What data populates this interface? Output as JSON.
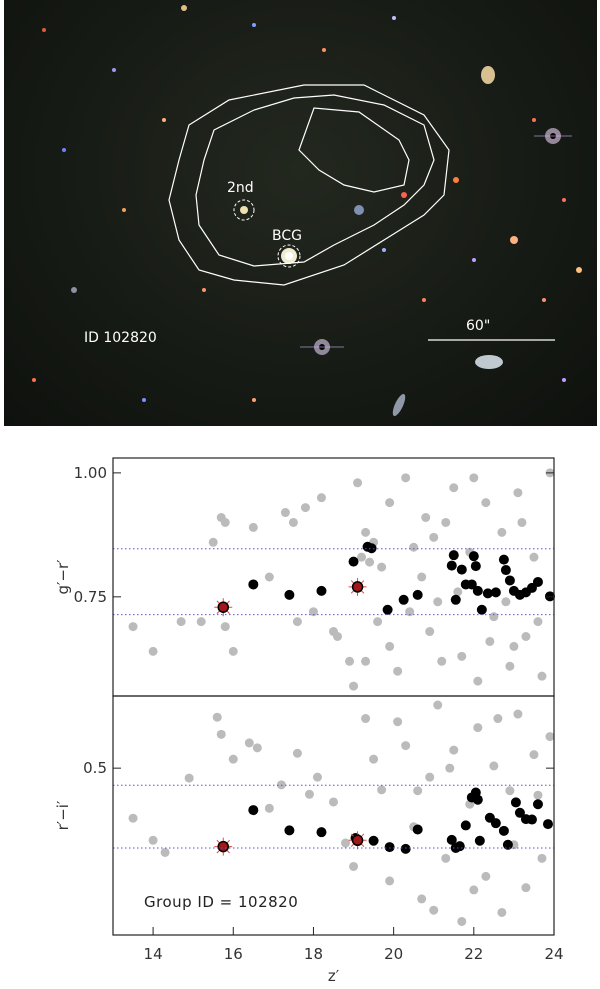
{
  "image_panel": {
    "id_label": "ID 102820",
    "scale_label": "60\"",
    "bcg_label": "BCG",
    "second_label": "2nd"
  },
  "chart_data": [
    {
      "type": "scatter",
      "xlabel": "z′",
      "ylabel": "g′−r′",
      "xlim": [
        13,
        24
      ],
      "ylim": [
        0.55,
        1.03
      ],
      "yticks": [
        {
          "value": 1.0,
          "label": "1.00"
        },
        {
          "value": 0.75,
          "label": "0.75"
        }
      ],
      "xticks": [
        14,
        16,
        18,
        20,
        22,
        24
      ],
      "reference_lines": [
        0.847,
        0.714
      ],
      "series": [
        {
          "role": "field",
          "color": "#bbbbbb",
          "points": [
            [
              13.5,
              0.69
            ],
            [
              14.0,
              0.64
            ],
            [
              14.7,
              0.7
            ],
            [
              15.2,
              0.7
            ],
            [
              15.5,
              0.86
            ],
            [
              15.8,
              0.69
            ],
            [
              16.0,
              0.64
            ],
            [
              15.7,
              0.91
            ],
            [
              15.8,
              0.9
            ],
            [
              16.5,
              0.89
            ],
            [
              17.3,
              0.92
            ],
            [
              17.5,
              0.9
            ],
            [
              17.8,
              0.93
            ],
            [
              18.2,
              0.95
            ],
            [
              16.9,
              0.79
            ],
            [
              17.6,
              0.7
            ],
            [
              18.0,
              0.72
            ],
            [
              18.5,
              0.68
            ],
            [
              18.6,
              0.67
            ],
            [
              18.9,
              0.62
            ],
            [
              19.1,
              0.98
            ],
            [
              19.2,
              0.83
            ],
            [
              19.3,
              0.88
            ],
            [
              19.4,
              0.82
            ],
            [
              19.5,
              0.86
            ],
            [
              19.7,
              0.81
            ],
            [
              19.9,
              0.94
            ],
            [
              19.0,
              0.57
            ],
            [
              19.3,
              0.62
            ],
            [
              19.6,
              0.7
            ],
            [
              19.9,
              0.65
            ],
            [
              20.1,
              0.6
            ],
            [
              20.3,
              0.99
            ],
            [
              20.5,
              0.85
            ],
            [
              20.7,
              0.79
            ],
            [
              20.9,
              0.68
            ],
            [
              21.1,
              0.74
            ],
            [
              21.3,
              0.9
            ],
            [
              21.5,
              0.97
            ],
            [
              21.7,
              0.63
            ],
            [
              21.9,
              0.84
            ],
            [
              22.1,
              0.58
            ],
            [
              22.3,
              0.94
            ],
            [
              22.5,
              0.71
            ],
            [
              22.7,
              0.88
            ],
            [
              22.9,
              0.61
            ],
            [
              23.1,
              0.96
            ],
            [
              23.3,
              0.67
            ],
            [
              23.5,
              0.83
            ],
            [
              23.7,
              0.59
            ],
            [
              23.9,
              1.0
            ],
            [
              21.2,
              0.62
            ],
            [
              22.4,
              0.66
            ],
            [
              23.2,
              0.9
            ],
            [
              20.8,
              0.91
            ],
            [
              21.6,
              0.76
            ],
            [
              22.8,
              0.74
            ],
            [
              23.6,
              0.7
            ],
            [
              20.4,
              0.72
            ],
            [
              21.0,
              0.87
            ],
            [
              22.0,
              0.99
            ],
            [
              23.0,
              0.65
            ]
          ]
        },
        {
          "role": "members",
          "color": "#000000",
          "points": [
            [
              16.5,
              0.775
            ],
            [
              17.4,
              0.754
            ],
            [
              18.2,
              0.762
            ],
            [
              19.0,
              0.821
            ],
            [
              19.35,
              0.851
            ],
            [
              19.45,
              0.848
            ],
            [
              19.85,
              0.724
            ],
            [
              20.25,
              0.744
            ],
            [
              20.6,
              0.754
            ],
            [
              21.45,
              0.813
            ],
            [
              21.5,
              0.834
            ],
            [
              21.55,
              0.744
            ],
            [
              21.7,
              0.805
            ],
            [
              21.8,
              0.775
            ],
            [
              21.95,
              0.775
            ],
            [
              22.0,
              0.832
            ],
            [
              22.05,
              0.812
            ],
            [
              22.1,
              0.762
            ],
            [
              22.2,
              0.724
            ],
            [
              22.35,
              0.757
            ],
            [
              22.55,
              0.759
            ],
            [
              22.75,
              0.825
            ],
            [
              22.8,
              0.804
            ],
            [
              22.9,
              0.783
            ],
            [
              23.0,
              0.762
            ],
            [
              23.15,
              0.754
            ],
            [
              23.3,
              0.759
            ],
            [
              23.45,
              0.768
            ],
            [
              23.6,
              0.78
            ],
            [
              23.9,
              0.751
            ]
          ]
        },
        {
          "role": "bcg_and_2nd",
          "color": "#a01818",
          "points": [
            [
              15.75,
              0.729
            ],
            [
              19.1,
              0.77
            ]
          ]
        }
      ]
    },
    {
      "type": "scatter",
      "xlabel": "z′",
      "ylabel": "r′−i′",
      "xlim": [
        13,
        24
      ],
      "ylim": [
        0.13,
        0.66
      ],
      "yticks": [
        {
          "value": 0.5,
          "label": "0.5"
        }
      ],
      "xticks": [
        14,
        16,
        18,
        20,
        22,
        24
      ],
      "reference_lines": [
        0.462,
        0.323
      ],
      "annotation": "Group ID = 102820",
      "series": [
        {
          "role": "field",
          "color": "#bbbbbb",
          "points": [
            [
              13.5,
              0.389
            ],
            [
              14.0,
              0.34
            ],
            [
              14.3,
              0.313
            ],
            [
              14.9,
              0.478
            ],
            [
              15.6,
              0.613
            ],
            [
              15.7,
              0.575
            ],
            [
              16.0,
              0.52
            ],
            [
              16.4,
              0.556
            ],
            [
              16.6,
              0.545
            ],
            [
              16.9,
              0.411
            ],
            [
              17.2,
              0.463
            ],
            [
              17.6,
              0.533
            ],
            [
              17.9,
              0.442
            ],
            [
              18.1,
              0.48
            ],
            [
              18.5,
              0.425
            ],
            [
              18.8,
              0.334
            ],
            [
              19.0,
              0.282
            ],
            [
              19.3,
              0.61
            ],
            [
              19.5,
              0.52
            ],
            [
              19.7,
              0.452
            ],
            [
              19.9,
              0.25
            ],
            [
              20.1,
              0.603
            ],
            [
              20.3,
              0.55
            ],
            [
              20.5,
              0.37
            ],
            [
              20.7,
              0.21
            ],
            [
              20.9,
              0.48
            ],
            [
              21.1,
              0.64
            ],
            [
              21.3,
              0.3
            ],
            [
              21.5,
              0.54
            ],
            [
              21.7,
              0.16
            ],
            [
              21.9,
              0.42
            ],
            [
              22.1,
              0.59
            ],
            [
              22.3,
              0.26
            ],
            [
              22.5,
              0.505
            ],
            [
              22.7,
              0.18
            ],
            [
              22.9,
              0.45
            ],
            [
              23.1,
              0.62
            ],
            [
              23.3,
              0.235
            ],
            [
              23.5,
              0.53
            ],
            [
              23.7,
              0.3
            ],
            [
              23.9,
              0.57
            ],
            [
              20.6,
              0.45
            ],
            [
              21.0,
              0.185
            ],
            [
              22.0,
              0.23
            ],
            [
              23.0,
              0.33
            ],
            [
              21.4,
              0.5
            ],
            [
              22.6,
              0.61
            ],
            [
              23.6,
              0.44
            ]
          ]
        },
        {
          "role": "members",
          "color": "#000000",
          "points": [
            [
              16.5,
              0.407
            ],
            [
              17.4,
              0.362
            ],
            [
              18.2,
              0.358
            ],
            [
              19.05,
              0.345
            ],
            [
              19.5,
              0.339
            ],
            [
              19.9,
              0.325
            ],
            [
              20.3,
              0.321
            ],
            [
              20.6,
              0.364
            ],
            [
              21.45,
              0.341
            ],
            [
              21.55,
              0.323
            ],
            [
              21.65,
              0.327
            ],
            [
              21.8,
              0.373
            ],
            [
              21.95,
              0.435
            ],
            [
              22.05,
              0.446
            ],
            [
              22.1,
              0.43
            ],
            [
              22.15,
              0.339
            ],
            [
              22.4,
              0.39
            ],
            [
              22.55,
              0.378
            ],
            [
              22.75,
              0.361
            ],
            [
              22.85,
              0.33
            ],
            [
              23.05,
              0.424
            ],
            [
              23.15,
              0.401
            ],
            [
              23.3,
              0.387
            ],
            [
              23.45,
              0.386
            ],
            [
              23.6,
              0.42
            ],
            [
              23.85,
              0.376
            ]
          ]
        },
        {
          "role": "bcg_and_2nd",
          "color": "#a01818",
          "points": [
            [
              15.75,
              0.326
            ],
            [
              19.1,
              0.34
            ]
          ]
        }
      ]
    }
  ]
}
